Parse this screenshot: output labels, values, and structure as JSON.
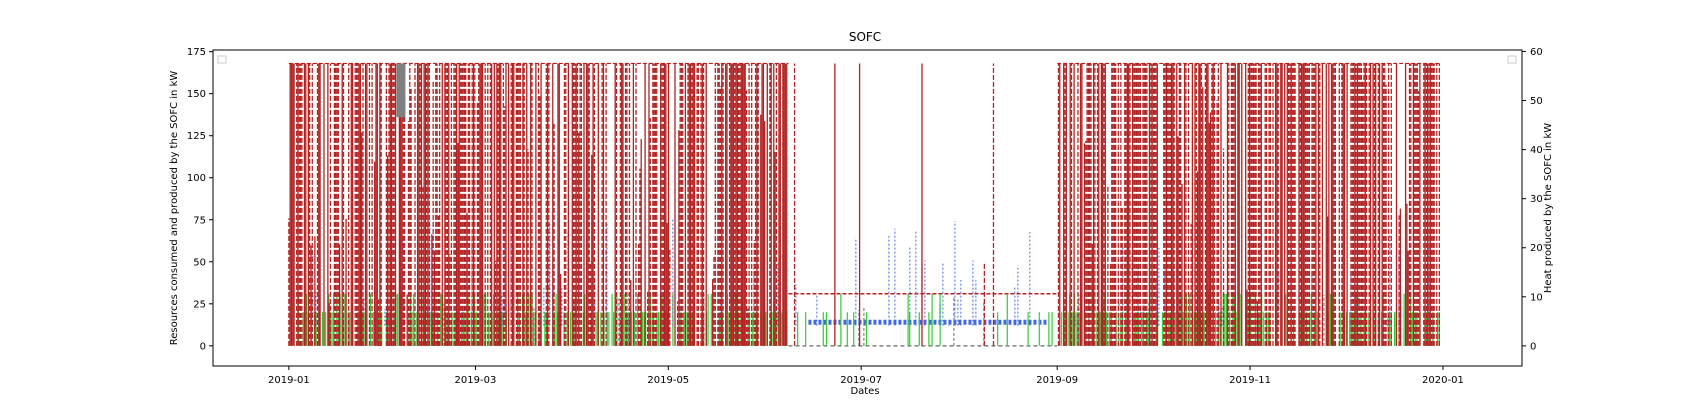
{
  "chart_data": {
    "type": "line",
    "title": "SOFC",
    "xlabel": "Dates",
    "ylabel_left": "Resources consumed and produced by the SOFC in kW",
    "ylabel_right": "Heat produced by the SOFC in kW",
    "x_ticks": [
      "2019-01",
      "2019-03",
      "2019-05",
      "2019-07",
      "2019-09",
      "2019-11",
      "2020-01"
    ],
    "x_range": [
      "2018-12-08",
      "2020-01-26"
    ],
    "y_left_ticks": [
      0,
      25,
      50,
      75,
      100,
      125,
      150,
      175
    ],
    "y_left_lim": [
      -12,
      176
    ],
    "y_right_ticks": [
      0,
      10,
      20,
      30,
      40,
      50,
      60
    ],
    "y_right_lim": [
      -4.1,
      60.3
    ],
    "legend": "two empty legend boxes at top-left and top-right",
    "grid": false,
    "series_colors": {
      "resource_high": "#b22222",
      "resource_mid": "#4169e1",
      "resource_low": "#32cd32",
      "resource_off": "#808080"
    },
    "series_levels_kW": {
      "high_peak": 168,
      "mid_peak": 80,
      "low_level": 20,
      "heat_level": 31
    }
  }
}
